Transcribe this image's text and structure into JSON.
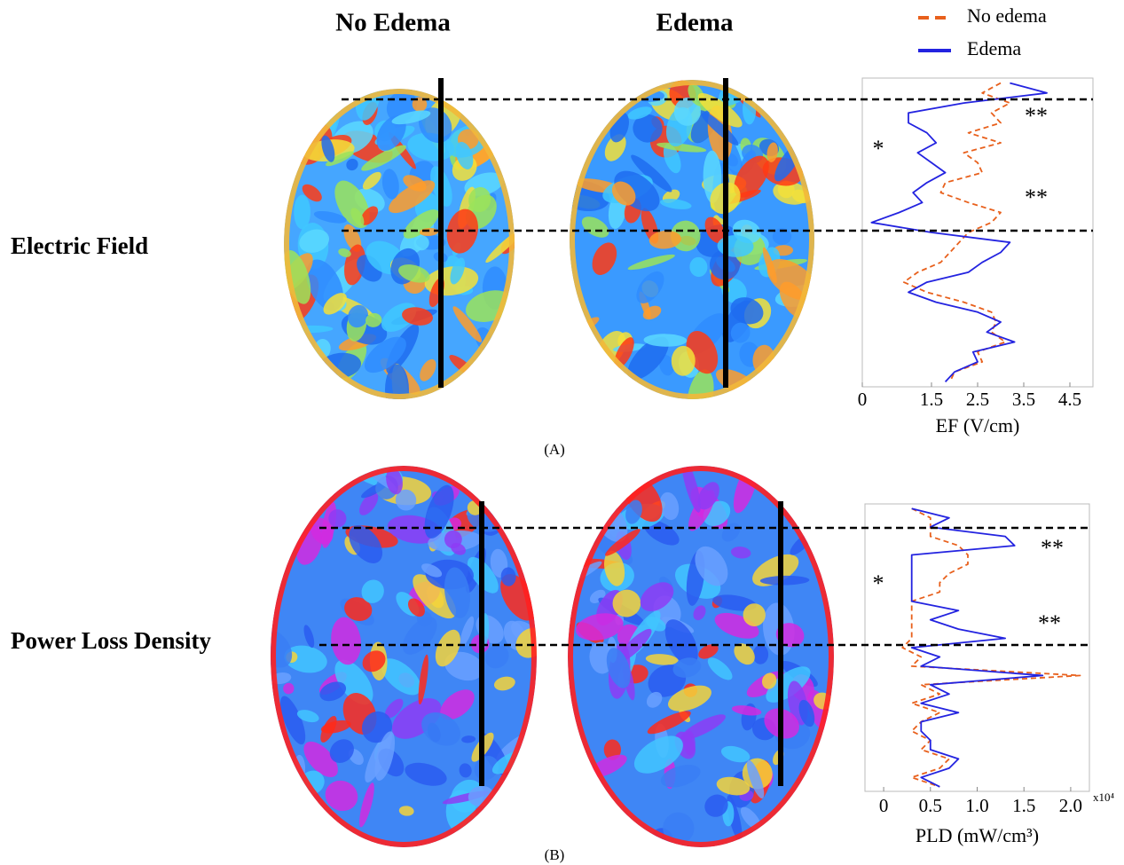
{
  "column_titles": [
    "No Edema",
    "Edema"
  ],
  "chart_data": [
    {
      "type": "line",
      "orientation": "vertical-profile",
      "row_label": "Electric Field",
      "panel_label": "(A)",
      "xlabel": "EF (V/cm)",
      "xlim": [
        0,
        5
      ],
      "xticks": [
        0,
        1.5,
        2.5,
        3.5,
        4.5
      ],
      "legend": "top",
      "annotations": [
        "**",
        "*",
        "**"
      ],
      "series": [
        {
          "name": "No edema",
          "color": "#e8601c",
          "style": "dashed",
          "values": [
            3.0,
            2.6,
            3.2,
            2.8,
            3.0,
            2.3,
            3.0,
            2.2,
            2.5,
            2.6,
            1.8,
            1.7,
            2.3,
            3.0,
            2.8,
            2.3,
            2.1,
            1.9,
            1.7,
            1.2,
            0.9,
            1.4,
            2.2,
            2.8,
            2.9,
            2.8,
            3.1,
            2.5,
            2.6,
            2.0,
            1.9
          ]
        },
        {
          "name": "Edema",
          "color": "#2323e0",
          "style": "solid",
          "values": [
            3.2,
            4.0,
            2.2,
            1.0,
            1.0,
            1.4,
            1.6,
            1.2,
            1.5,
            1.8,
            1.4,
            1.1,
            1.3,
            0.8,
            0.2,
            1.5,
            3.2,
            3.0,
            2.6,
            2.3,
            1.4,
            1.0,
            1.6,
            2.5,
            3.0,
            2.7,
            3.3,
            2.4,
            2.5,
            2.0,
            1.8
          ]
        }
      ]
    },
    {
      "type": "line",
      "orientation": "vertical-profile",
      "row_label": "Power Loss Density",
      "panel_label": "(B)",
      "xlabel": "PLD (mW/cm³)",
      "x_multiplier": "x10⁴",
      "xlim": [
        -0.2,
        2.2
      ],
      "xticks": [
        0,
        0.5,
        {
          "value": 1,
          "label": "1.0"
        },
        1.5,
        {
          "value": 2,
          "label": "2.0"
        }
      ],
      "annotations": [
        "*",
        "**",
        "**"
      ],
      "series": [
        {
          "color": "#e8601c",
          "style": "dashed",
          "values": [
            0.3,
            0.5,
            0.5,
            0.5,
            0.8,
            0.9,
            0.9,
            0.7,
            0.6,
            0.6,
            0.3,
            0.3,
            0.3,
            0.3,
            0.3,
            0.2,
            0.4,
            0.3,
            2.1,
            0.4,
            0.6,
            0.3,
            0.6,
            0.4,
            0.3,
            0.5,
            0.4,
            0.7,
            0.6,
            0.3,
            0.6
          ]
        },
        {
          "color": "#2323e0",
          "style": "solid",
          "values": [
            0.3,
            0.7,
            0.5,
            1.3,
            1.4,
            0.3,
            0.3,
            0.3,
            0.3,
            0.3,
            0.3,
            0.8,
            0.5,
            0.8,
            1.3,
            0.3,
            0.6,
            0.4,
            1.7,
            0.5,
            0.7,
            0.4,
            0.8,
            0.4,
            0.4,
            0.5,
            0.5,
            0.8,
            0.7,
            0.4,
            0.6
          ]
        }
      ]
    }
  ]
}
